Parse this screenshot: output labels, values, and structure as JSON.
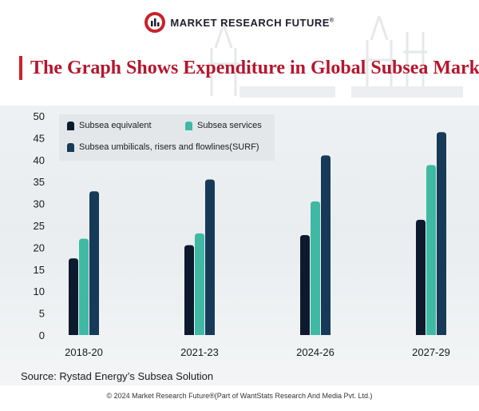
{
  "brand": {
    "name": "MARKET RESEARCH FUTURE",
    "reg": "®"
  },
  "title": "The Graph Shows Expenditure in Global Subsea Market",
  "source": "Source: Rystad Energy’s Subsea Solution",
  "copyright": "© 2024 Market Research Future®(Part of WantStats Research And Media Pvt. Ltd.)",
  "colors": {
    "accent": "#c8222b",
    "title": "#b5162e",
    "series": [
      "#0d1a2e",
      "#3fb9a4",
      "#173a58"
    ]
  },
  "chart_data": {
    "type": "bar",
    "title": "The Graph Shows Expenditure in Global Subsea Market",
    "xlabel": "",
    "ylabel": "",
    "ylim": [
      0,
      50
    ],
    "yticks": [
      "0",
      "5",
      "10",
      "15",
      "20",
      "25",
      "30",
      "35",
      "40",
      "45",
      "50"
    ],
    "categories": [
      "2018-20",
      "2021-23",
      "2024-26",
      "2027-29"
    ],
    "series": [
      {
        "name": "Subsea equivalent",
        "values": [
          17.5,
          20.5,
          22.8,
          26.3
        ]
      },
      {
        "name": "Subsea services",
        "values": [
          22,
          23.2,
          30.5,
          38.8
        ]
      },
      {
        "name": "Subsea umbilicals, risers and flowlines(SURF)",
        "values": [
          32.8,
          35.5,
          41,
          46.3
        ]
      }
    ],
    "legend": "top-left",
    "grid": false
  }
}
